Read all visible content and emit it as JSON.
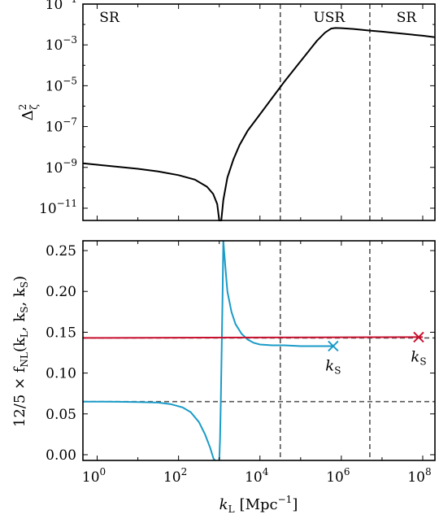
{
  "chart_data": [
    {
      "panel": "top",
      "type": "line",
      "xscale": "log",
      "yscale": "log",
      "xlim_log10": [
        -0.35,
        8.3
      ],
      "ylim_log10": [
        -11.6,
        -1
      ],
      "ylabel_main": "Δ",
      "ylabel_sup": "2",
      "ylabel_sub": "ζ",
      "yticks": [
        {
          "base": "10",
          "exp": "−1",
          "log": -1
        },
        {
          "base": "10",
          "exp": "−3",
          "log": -3
        },
        {
          "base": "10",
          "exp": "−5",
          "log": -5
        },
        {
          "base": "10",
          "exp": "−7",
          "log": -7
        },
        {
          "base": "10",
          "exp": "−9",
          "log": -9
        },
        {
          "base": "10",
          "exp": "−11",
          "log": -11
        }
      ],
      "regions": [
        {
          "label": "SR",
          "x_log10": 0.3
        },
        {
          "label": "USR",
          "x_log10": 5.7
        },
        {
          "label": "SR",
          "x_log10": 7.6
        }
      ],
      "vlines_log10": [
        4.5,
        6.7
      ],
      "series": [
        {
          "color": "#000000",
          "x_log10": [
            -0.35,
            0,
            0.5,
            1,
            1.5,
            2,
            2.4,
            2.7,
            2.85,
            2.95,
            3.0,
            3.05,
            3.1,
            3.2,
            3.35,
            3.5,
            3.7,
            4.0,
            4.3,
            4.6,
            4.9,
            5.2,
            5.4,
            5.6,
            5.75,
            5.85,
            6.0,
            6.3,
            6.7,
            7.0,
            7.5,
            8.0,
            8.3
          ],
          "y_log10": [
            -8.8,
            -8.87,
            -8.97,
            -9.07,
            -9.2,
            -9.38,
            -9.6,
            -9.95,
            -10.3,
            -10.8,
            -11.6,
            -11.6,
            -10.6,
            -9.5,
            -8.6,
            -7.9,
            -7.2,
            -6.4,
            -5.6,
            -4.8,
            -4.05,
            -3.3,
            -2.8,
            -2.4,
            -2.2,
            -2.17,
            -2.18,
            -2.22,
            -2.3,
            -2.35,
            -2.45,
            -2.55,
            -2.62
          ]
        }
      ]
    },
    {
      "panel": "bottom",
      "type": "line",
      "xscale": "log",
      "yscale": "linear",
      "xlim_log10": [
        -0.35,
        8.3
      ],
      "ylim": [
        -0.007,
        0.262
      ],
      "ylabel": "12/5 × f",
      "ylabel_sub": "NL",
      "ylabel_args": "(k",
      "ylabel_args_sub": "L",
      "ylabel_args_rest": ", k",
      "ylabel_args_sub2": "S",
      "ylabel_args_rest2": ", k",
      "ylabel_args_sub3": "S",
      "ylabel_args_end": ")",
      "xlabel_main": "k",
      "xlabel_sub": "L",
      "xlabel_unit": "[Mpc",
      "xlabel_unit_exp": "−1",
      "xlabel_unit_end": "]",
      "yticks": [
        "0.00",
        "0.05",
        "0.10",
        "0.15",
        "0.20",
        "0.25"
      ],
      "ytick_values": [
        0.0,
        0.05,
        0.1,
        0.15,
        0.2,
        0.25
      ],
      "xticks": [
        {
          "base": "10",
          "exp": "0",
          "log": 0
        },
        {
          "base": "10",
          "exp": "2",
          "log": 2
        },
        {
          "base": "10",
          "exp": "4",
          "log": 4
        },
        {
          "base": "10",
          "exp": "6",
          "log": 6
        },
        {
          "base": "10",
          "exp": "8",
          "log": 8
        }
      ],
      "vlines_log10": [
        4.5,
        6.7
      ],
      "hlines": [
        0.065,
        0.143
      ],
      "series": [
        {
          "color": "#1a9bc7",
          "segments": [
            {
              "x_log10": [
                -0.35,
                0,
                0.5,
                1,
                1.5,
                1.8,
                2.1,
                2.3,
                2.5,
                2.65,
                2.78,
                2.86,
                2.9
              ],
              "y": [
                0.065,
                0.065,
                0.0648,
                0.0645,
                0.0638,
                0.062,
                0.058,
                0.052,
                0.04,
                0.025,
                0.008,
                -0.005,
                -0.01
              ]
            },
            {
              "x_log10": [
                3.0,
                3.02,
                3.04,
                3.06,
                3.08,
                3.1
              ],
              "y": [
                -0.01,
                0.02,
                0.07,
                0.13,
                0.19,
                0.27
              ]
            },
            {
              "x_log10": [
                3.1,
                3.15,
                3.2,
                3.3,
                3.4,
                3.55,
                3.7,
                3.85,
                4.0,
                4.3,
                4.6,
                5.0,
                5.4,
                5.8
              ],
              "y": [
                0.27,
                0.23,
                0.2,
                0.175,
                0.16,
                0.148,
                0.141,
                0.137,
                0.135,
                0.134,
                0.134,
                0.133,
                0.133,
                0.133
              ]
            }
          ]
        },
        {
          "color": "#c8102e",
          "segments": [
            {
              "x_log10": [
                -0.35,
                8.0
              ],
              "y": [
                0.143,
                0.144
              ]
            }
          ]
        }
      ],
      "markers": [
        {
          "label_main": "k",
          "label_sub": "S",
          "x_log10": 5.8,
          "y": 0.133,
          "color": "#1a9bc7"
        },
        {
          "label_main": "k",
          "label_sub": "S",
          "x_log10": 7.9,
          "y": 0.144,
          "color": "#c8102e"
        }
      ]
    }
  ]
}
